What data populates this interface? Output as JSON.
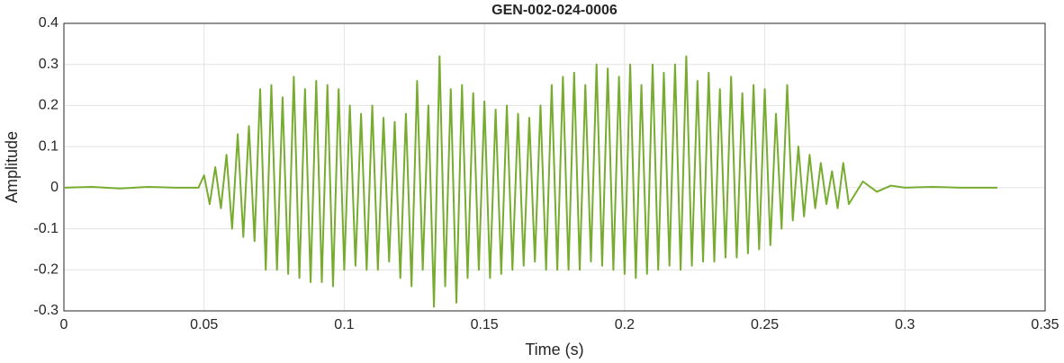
{
  "chart_data": {
    "type": "line",
    "title": "GEN-002-024-0006",
    "xlabel": "Time (s)",
    "ylabel": "Amplitude",
    "x": [
      0,
      0.01,
      0.02,
      0.03,
      0.04,
      0.046,
      0.048,
      0.05,
      0.052,
      0.054,
      0.056,
      0.058,
      0.06,
      0.062,
      0.064,
      0.066,
      0.068,
      0.07,
      0.072,
      0.074,
      0.076,
      0.078,
      0.08,
      0.082,
      0.084,
      0.086,
      0.088,
      0.09,
      0.092,
      0.094,
      0.096,
      0.098,
      0.1,
      0.102,
      0.104,
      0.106,
      0.108,
      0.11,
      0.112,
      0.114,
      0.116,
      0.118,
      0.12,
      0.122,
      0.124,
      0.126,
      0.128,
      0.13,
      0.132,
      0.134,
      0.136,
      0.138,
      0.14,
      0.142,
      0.144,
      0.146,
      0.148,
      0.15,
      0.152,
      0.154,
      0.156,
      0.158,
      0.16,
      0.162,
      0.164,
      0.166,
      0.168,
      0.17,
      0.172,
      0.174,
      0.176,
      0.178,
      0.18,
      0.182,
      0.184,
      0.186,
      0.188,
      0.19,
      0.192,
      0.194,
      0.196,
      0.198,
      0.2,
      0.202,
      0.204,
      0.206,
      0.208,
      0.21,
      0.212,
      0.214,
      0.216,
      0.218,
      0.22,
      0.222,
      0.224,
      0.226,
      0.228,
      0.23,
      0.232,
      0.234,
      0.236,
      0.238,
      0.24,
      0.242,
      0.244,
      0.246,
      0.248,
      0.25,
      0.252,
      0.254,
      0.256,
      0.258,
      0.26,
      0.262,
      0.264,
      0.266,
      0.268,
      0.27,
      0.272,
      0.274,
      0.276,
      0.278,
      0.28,
      0.285,
      0.29,
      0.295,
      0.3,
      0.31,
      0.32,
      0.333
    ],
    "series": [
      {
        "color": "#77ac30",
        "values": [
          0,
          0.002,
          -0.002,
          0.002,
          0,
          0,
          0,
          0.03,
          -0.04,
          0.05,
          -0.05,
          0.08,
          -0.1,
          0.13,
          -0.12,
          0.15,
          -0.13,
          0.24,
          -0.2,
          0.25,
          -0.2,
          0.22,
          -0.21,
          0.27,
          -0.22,
          0.24,
          -0.23,
          0.26,
          -0.23,
          0.25,
          -0.24,
          0.24,
          -0.2,
          0.2,
          -0.19,
          0.18,
          -0.2,
          0.2,
          -0.2,
          0.17,
          -0.18,
          0.16,
          -0.22,
          0.18,
          -0.24,
          0.26,
          -0.2,
          0.2,
          -0.29,
          0.32,
          -0.24,
          0.24,
          -0.28,
          0.25,
          -0.22,
          0.23,
          -0.2,
          0.21,
          -0.22,
          0.19,
          -0.21,
          0.2,
          -0.2,
          0.18,
          -0.19,
          0.17,
          -0.18,
          0.2,
          -0.2,
          0.25,
          -0.2,
          0.27,
          -0.2,
          0.28,
          -0.2,
          0.25,
          -0.18,
          0.3,
          -0.19,
          0.29,
          -0.2,
          0.27,
          -0.21,
          0.3,
          -0.22,
          0.25,
          -0.21,
          0.3,
          -0.2,
          0.28,
          -0.19,
          0.3,
          -0.2,
          0.32,
          -0.19,
          0.26,
          -0.18,
          0.28,
          -0.18,
          0.24,
          -0.17,
          0.27,
          -0.17,
          0.23,
          -0.16,
          0.25,
          -0.15,
          0.24,
          -0.14,
          0.18,
          -0.1,
          0.25,
          -0.08,
          0.1,
          -0.07,
          0.08,
          -0.05,
          0.06,
          -0.04,
          0.04,
          -0.05,
          0.06,
          -0.04,
          0.015,
          -0.01,
          0.005,
          0,
          0.002,
          0,
          0
        ]
      }
    ],
    "xlim": [
      0,
      0.35
    ],
    "xticks": [
      0,
      0.05,
      0.1,
      0.15,
      0.2,
      0.25,
      0.3,
      0.35
    ],
    "ylim": [
      -0.3,
      0.4
    ],
    "yticks": [
      -0.3,
      -0.2,
      -0.1,
      0,
      0.1,
      0.2,
      0.3,
      0.4
    ],
    "grid": true
  }
}
